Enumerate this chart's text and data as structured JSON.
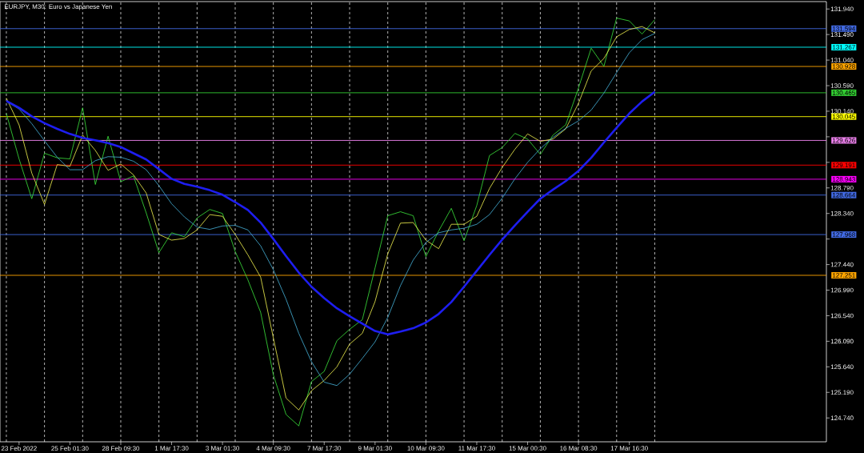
{
  "chart_data": {
    "type": "line",
    "title": "EURJPY, M30:  Euro vs Japanese Yen",
    "categories": [
      null,
      "23 Feb 2022",
      null,
      null,
      null,
      "25 Feb 01:30",
      null,
      null,
      null,
      "28 Feb 09:30",
      null,
      null,
      null,
      "1 Mar 17:30",
      null,
      null,
      null,
      "3 Mar 01:30",
      null,
      null,
      null,
      "4 Mar 09:30",
      null,
      null,
      null,
      "7 Mar 17:30",
      null,
      null,
      null,
      "9 Mar 01:30",
      null,
      null,
      null,
      "10 Mar 09:30",
      null,
      null,
      null,
      "11 Mar 17:30",
      null,
      null,
      null,
      "15 Mar 00:30",
      null,
      null,
      null,
      "16 Mar 08:30",
      null,
      null,
      null,
      "17 Mar 16:30",
      null,
      null,
      null,
      null,
      null,
      null,
      null,
      null,
      null,
      null,
      null,
      null,
      null,
      null,
      null
    ],
    "ylim": [
      124.32,
      132.07
    ],
    "yticks": [
      {
        "value": 124.74,
        "label": "124.740"
      },
      {
        "value": 125.19,
        "label": "125.190"
      },
      {
        "value": 125.64,
        "label": "125.640"
      },
      {
        "value": 126.09,
        "label": "126.090"
      },
      {
        "value": 126.54,
        "label": "126.540"
      },
      {
        "value": 126.99,
        "label": "126.990"
      },
      {
        "value": 127.44,
        "label": "127.440"
      },
      {
        "value": 127.89,
        "label": null
      },
      {
        "value": 128.34,
        "label": "128.340"
      },
      {
        "value": 128.79,
        "label": "128.790"
      },
      {
        "value": 129.24,
        "label": null
      },
      {
        "value": 129.69,
        "label": null
      },
      {
        "value": 130.14,
        "label": "130.140"
      },
      {
        "value": 130.59,
        "label": "130.590"
      },
      {
        "value": 131.04,
        "label": "131.040"
      },
      {
        "value": 131.49,
        "label": "131.490"
      },
      {
        "value": 131.94,
        "label": "131.940"
      }
    ],
    "grid": "x",
    "marker": "none",
    "ref_lines": [
      {
        "axis": "y",
        "value": 131.594,
        "label": "131.594",
        "color": "#4169e1"
      },
      {
        "axis": "y",
        "value": 131.267,
        "label": "131.267",
        "color": "#00ffff"
      },
      {
        "axis": "y",
        "value": 130.928,
        "label": "130.928",
        "color": "#ffa500"
      },
      {
        "axis": "y",
        "value": 130.465,
        "label": "130.465",
        "color": "#32cd32"
      },
      {
        "axis": "y",
        "value": 130.045,
        "label": "130.045",
        "color": "#ffff00"
      },
      {
        "axis": "y",
        "value": 129.626,
        "label": "129.626",
        "color": "#ee82ee"
      },
      {
        "axis": "y",
        "value": 129.191,
        "label": "129.191",
        "color": "#ff0000"
      },
      {
        "axis": "y",
        "value": 128.943,
        "label": "128.943",
        "color": "#ff00ff"
      },
      {
        "axis": "y",
        "value": 128.664,
        "label": "128.664",
        "color": "#4169e1"
      },
      {
        "axis": "y",
        "value": 127.968,
        "label": "127.968",
        "color": "#4169e1"
      },
      {
        "axis": "y",
        "value": 127.251,
        "label": "127.251",
        "color": "#ffa500"
      }
    ],
    "series": [
      {
        "color": "#3ce63c",
        "values": [
          130.1,
          129.3,
          128.6,
          129.4,
          129.32,
          129.3,
          130.2,
          128.85,
          129.7,
          128.9,
          129.0,
          128.35,
          127.65,
          128.0,
          127.93,
          128.26,
          128.41,
          128.34,
          127.67,
          127.17,
          126.6,
          125.5,
          124.8,
          124.6,
          125.38,
          125.56,
          126.1,
          126.3,
          126.47,
          127.38,
          128.3,
          128.37,
          128.3,
          127.58,
          128.03,
          128.43,
          127.86,
          128.48,
          129.36,
          129.5,
          129.75,
          129.65,
          129.38,
          129.72,
          129.9,
          130.55,
          131.25,
          130.93,
          131.78,
          131.73,
          131.5,
          131.75,
          null,
          null,
          null,
          null,
          null,
          null,
          null,
          null,
          null,
          null,
          null,
          null,
          null
        ]
      },
      {
        "color": "#f5f550",
        "values": [
          130.37,
          129.9,
          129.05,
          128.5,
          129.2,
          129.17,
          129.72,
          129.45,
          129.1,
          129.21,
          129.02,
          128.7,
          127.97,
          127.87,
          127.9,
          128.05,
          128.32,
          128.29,
          127.97,
          127.61,
          127.22,
          126.15,
          125.09,
          124.88,
          125.22,
          125.4,
          125.64,
          126.04,
          126.23,
          126.79,
          127.63,
          128.17,
          128.18,
          127.87,
          127.72,
          128.15,
          128.15,
          128.29,
          128.78,
          129.15,
          129.47,
          129.74,
          129.61,
          129.65,
          129.83,
          130.28,
          130.85,
          131.07,
          131.45,
          131.58,
          131.63,
          131.52,
          null,
          null,
          null,
          null,
          null,
          null,
          null,
          null,
          null,
          null,
          null,
          null,
          null
        ]
      },
      {
        "color": "#46b4dc",
        "values": [
          130.31,
          130.18,
          129.92,
          129.62,
          129.33,
          129.11,
          129.11,
          129.27,
          129.34,
          129.33,
          129.26,
          129.11,
          128.83,
          128.51,
          128.28,
          128.1,
          128.06,
          128.12,
          128.13,
          128.05,
          127.77,
          127.35,
          126.83,
          126.23,
          125.73,
          125.37,
          125.31,
          125.51,
          125.79,
          126.08,
          126.51,
          127.07,
          127.52,
          127.83,
          128.0,
          128.05,
          128.08,
          128.15,
          128.32,
          128.61,
          128.95,
          129.24,
          129.48,
          129.68,
          129.84,
          129.97,
          130.16,
          130.46,
          130.82,
          131.17,
          131.4,
          131.51,
          null,
          null,
          null,
          null,
          null,
          null,
          null,
          null,
          null,
          null,
          null,
          null,
          null
        ]
      },
      {
        "color": "#1e1ef0",
        "values": [
          130.32,
          130.2,
          130.05,
          129.93,
          129.83,
          129.74,
          129.67,
          129.63,
          129.58,
          129.51,
          129.4,
          129.29,
          129.12,
          128.95,
          128.86,
          128.81,
          128.75,
          128.67,
          128.54,
          128.4,
          128.18,
          127.89,
          127.59,
          127.3,
          127.05,
          126.85,
          126.67,
          126.53,
          126.4,
          126.27,
          126.21,
          126.26,
          126.32,
          126.42,
          126.57,
          126.78,
          127.05,
          127.33,
          127.61,
          127.88,
          128.13,
          128.37,
          128.6,
          128.76,
          128.91,
          129.09,
          129.32,
          129.59,
          129.85,
          130.1,
          130.31,
          130.48,
          null,
          null,
          null,
          null,
          null,
          null,
          null,
          null,
          null,
          null,
          null,
          null,
          null
        ]
      }
    ]
  }
}
